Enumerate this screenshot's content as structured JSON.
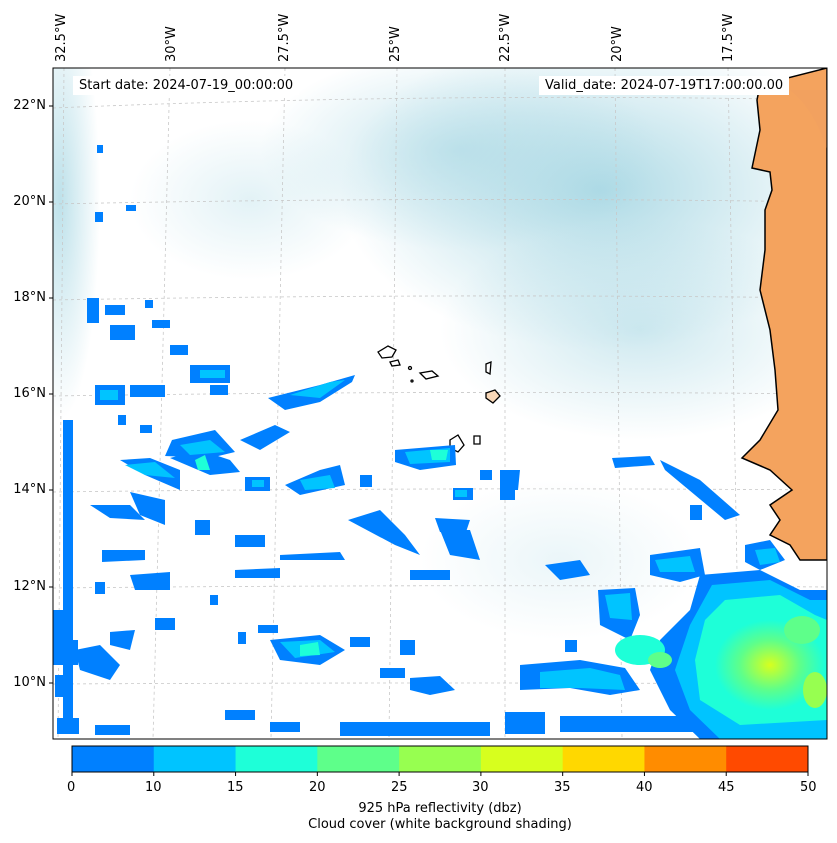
{
  "header": {
    "start_date": "Start date: 2024-07-19_00:00:00",
    "valid_date": "Valid_date: 2024-07-19T17:00:00.00"
  },
  "axes": {
    "lon_ticks": [
      "32.5°W",
      "30°W",
      "27.5°W",
      "25°W",
      "22.5°W",
      "20°W",
      "17.5°W"
    ],
    "lat_ticks": [
      "22°N",
      "20°N",
      "18°N",
      "16°N",
      "14°N",
      "12°N",
      "10°N"
    ]
  },
  "colorbar": {
    "ticks": [
      "0",
      "10",
      "15",
      "20",
      "25",
      "30",
      "35",
      "40",
      "45",
      "50"
    ],
    "colors": [
      "#0080ff",
      "#00c4ff",
      "#1effd8",
      "#5eff8a",
      "#97ff50",
      "#d7ff1e",
      "#ffd800",
      "#ff8c00",
      "#ff4a00"
    ],
    "label_line1": "925 hPa reflectivity (dbz)",
    "label_line2": "Cloud cover (white background shading)"
  },
  "colors": {
    "land": "#f4a35e",
    "cloud_shading": "#a9d8e4",
    "coastline": "#000000",
    "gridline": "#c8c8c8"
  }
}
